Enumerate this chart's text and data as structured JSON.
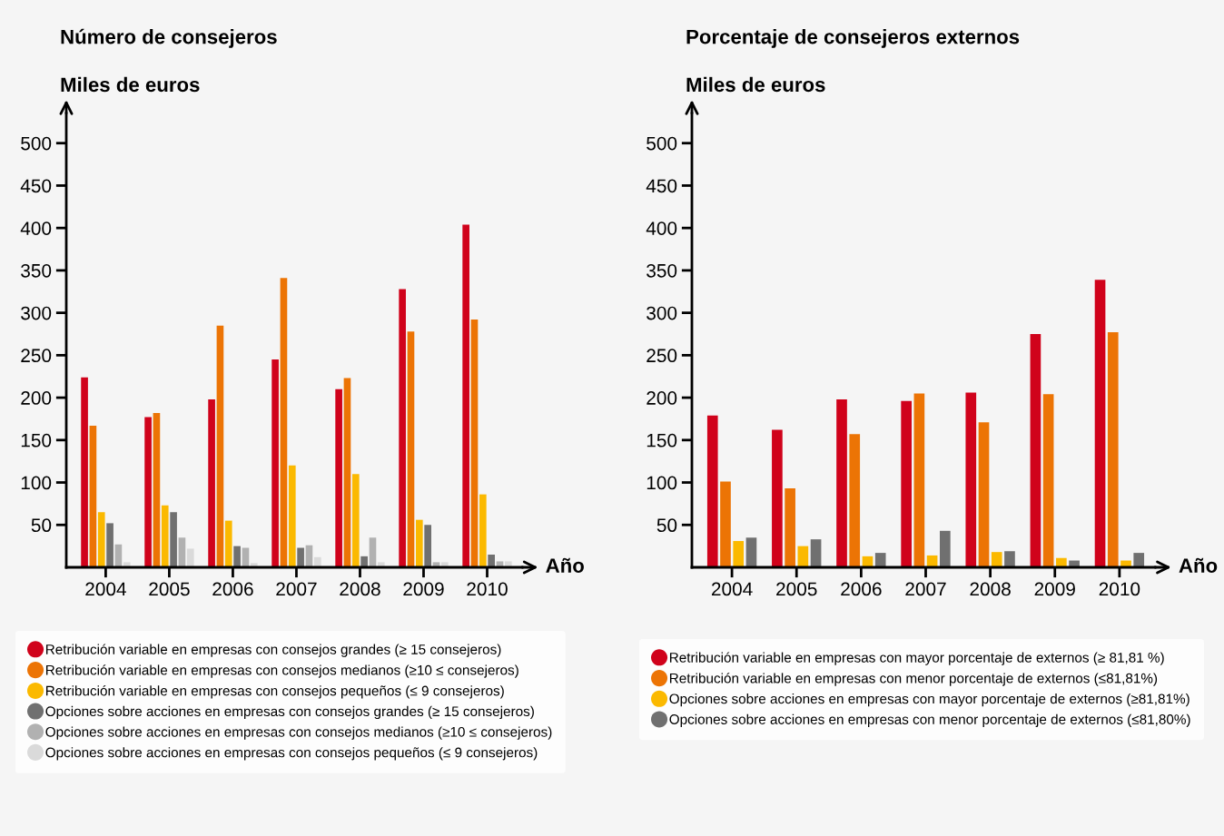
{
  "chart_data": [
    {
      "type": "bar",
      "title": "Número de consejeros",
      "ylabel": "Miles de euros",
      "xlabel": "Año",
      "categories": [
        "2004",
        "2005",
        "2006",
        "2007",
        "2008",
        "2009",
        "2010"
      ],
      "series": [
        {
          "name": "Retribución variable en empresas con consejos grandes (≥ 15 consejeros)",
          "color": "#d0021b",
          "values": [
            224,
            177,
            198,
            245,
            210,
            328,
            404
          ]
        },
        {
          "name": "Retribución variable en empresas con consejos medianos (≥10 ≤ consejeros)",
          "color": "#ec7405",
          "values": [
            167,
            182,
            285,
            341,
            223,
            278,
            292
          ]
        },
        {
          "name": "Retribución variable en empresas con consejos pequeños (≤ 9 consejeros)",
          "color": "#fbb900",
          "values": [
            65,
            73,
            55,
            120,
            110,
            56,
            86
          ]
        },
        {
          "name": "Opciones sobre acciones en empresas con consejos grandes (≥ 15 consejeros)",
          "color": "#707070",
          "values": [
            52,
            65,
            25,
            23,
            13,
            50,
            15
          ]
        },
        {
          "name": "Opciones sobre acciones en empresas con consejos medianos (≥10 ≤ consejeros)",
          "color": "#b1b1b1",
          "values": [
            27,
            35,
            23,
            26,
            35,
            6,
            7
          ]
        },
        {
          "name": "Opciones sobre acciones en empresas con consejos pequeños (≤ 9 consejeros)",
          "color": "#dadada",
          "values": [
            6,
            22,
            5,
            12,
            6,
            6,
            7
          ]
        }
      ],
      "ylim": [
        0,
        535
      ],
      "yticks": [
        50,
        100,
        150,
        200,
        250,
        300,
        350,
        400,
        450,
        500
      ],
      "grid": false,
      "legend": "bottom"
    },
    {
      "type": "bar",
      "title": "Porcentaje de consejeros externos",
      "ylabel": "Miles de euros",
      "xlabel": "Año",
      "categories": [
        "2004",
        "2005",
        "2006",
        "2007",
        "2008",
        "2009",
        "2010"
      ],
      "series": [
        {
          "name": "Retribución variable en empresas con mayor porcentaje de externos (≥ 81,81 %)",
          "color": "#d0021b",
          "values": [
            179,
            162,
            198,
            196,
            206,
            275,
            339
          ]
        },
        {
          "name": "Retribución variable en empresas con menor porcentaje de externos (≤81,81%)",
          "color": "#ec7405",
          "values": [
            101,
            93,
            157,
            205,
            171,
            204,
            277
          ]
        },
        {
          "name": "Opciones sobre acciones en empresas con mayor porcentaje de externos (≥81,81%)",
          "color": "#fbb900",
          "values": [
            31,
            25,
            13,
            14,
            18,
            11,
            8
          ]
        },
        {
          "name": "Opciones sobre acciones en empresas con menor porcentaje de externos (≤81,80%)",
          "color": "#707070",
          "values": [
            35,
            33,
            17,
            43,
            19,
            8,
            17
          ]
        }
      ],
      "ylim": [
        0,
        535
      ],
      "yticks": [
        50,
        100,
        150,
        200,
        250,
        300,
        350,
        400,
        450,
        500
      ],
      "grid": false,
      "legend": "bottom"
    }
  ]
}
